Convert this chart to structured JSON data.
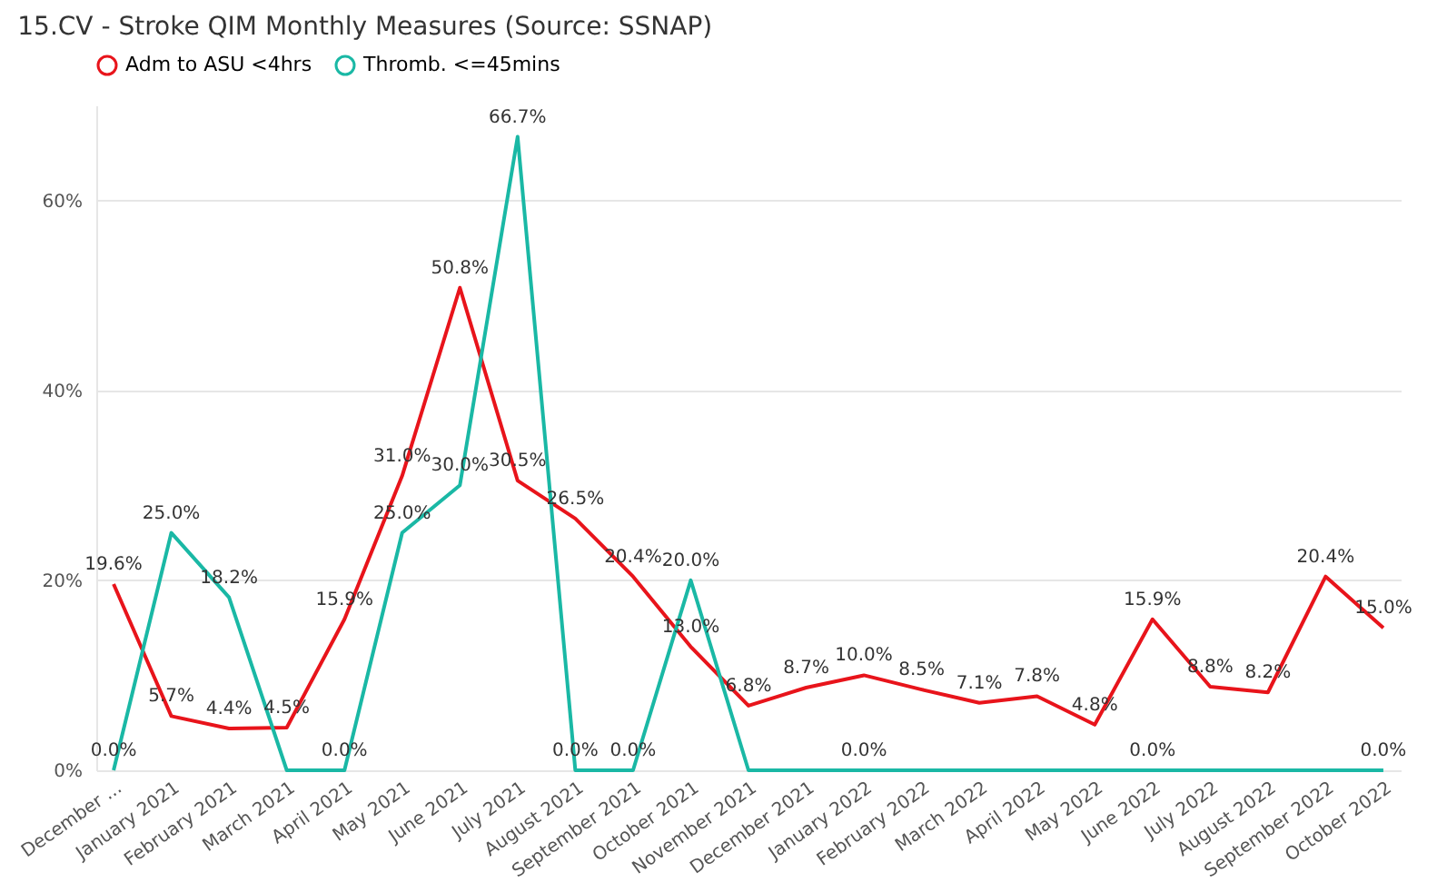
{
  "chart_data": {
    "type": "line",
    "title": "15.CV - Stroke QIM Monthly Measures (Source: SSNAP)",
    "categories": [
      "December ...",
      "January 2021",
      "February 2021",
      "March 2021",
      "April 2021",
      "May 2021",
      "June 2021",
      "July 2021",
      "August 2021",
      "September 2021",
      "October 2021",
      "November 2021",
      "December 2021",
      "January 2022",
      "February 2022",
      "March 2022",
      "April 2022",
      "May 2022",
      "June 2022",
      "July 2022",
      "August 2022",
      "September 2022",
      "October 2022"
    ],
    "series": [
      {
        "name": "Adm to ASU <4hrs",
        "color": "#e8141b",
        "values": [
          19.6,
          5.7,
          4.4,
          4.5,
          15.9,
          31.0,
          50.8,
          30.5,
          26.5,
          20.4,
          13.0,
          6.8,
          8.7,
          10.0,
          8.5,
          7.1,
          7.8,
          4.8,
          15.9,
          8.8,
          8.2,
          20.4,
          15.0
        ],
        "value_labels": [
          "19.6%",
          "5.7%",
          "4.4%",
          "4.5%",
          "15.9%",
          "31.0%",
          "50.8%",
          "30.5%",
          "26.5%",
          "20.4%",
          "13.0%",
          "6.8%",
          "8.7%",
          "10.0%",
          "8.5%",
          "7.1%",
          "7.8%",
          "4.8%",
          "15.9%",
          "8.8%",
          "8.2%",
          "20.4%",
          "15.0%"
        ]
      },
      {
        "name": "Thromb. <=45mins",
        "color": "#1ab8a5",
        "values": [
          0,
          25.0,
          18.2,
          0,
          0,
          25.0,
          30.0,
          66.7,
          0,
          0,
          20.0,
          0,
          0,
          0,
          0,
          0,
          0,
          0,
          0,
          0,
          0,
          0,
          0
        ],
        "value_labels": [
          "0.0%",
          "25.0%",
          "18.2%",
          null,
          "0.0%",
          "25.0%",
          "30.0%",
          "66.7%",
          "0.0%",
          "0.0%",
          "20.0%",
          null,
          null,
          "0.0%",
          null,
          null,
          null,
          null,
          "0.0%",
          null,
          null,
          null,
          "0.0%"
        ]
      }
    ],
    "ylim": [
      0,
      70
    ],
    "yticks": [
      {
        "value": 0,
        "label": "0%"
      },
      {
        "value": 20,
        "label": "20%"
      },
      {
        "value": 40,
        "label": "40%"
      },
      {
        "value": 60,
        "label": "60%"
      }
    ],
    "grid": "y",
    "legend": "top left",
    "marker": "none",
    "line_style": "solid"
  }
}
